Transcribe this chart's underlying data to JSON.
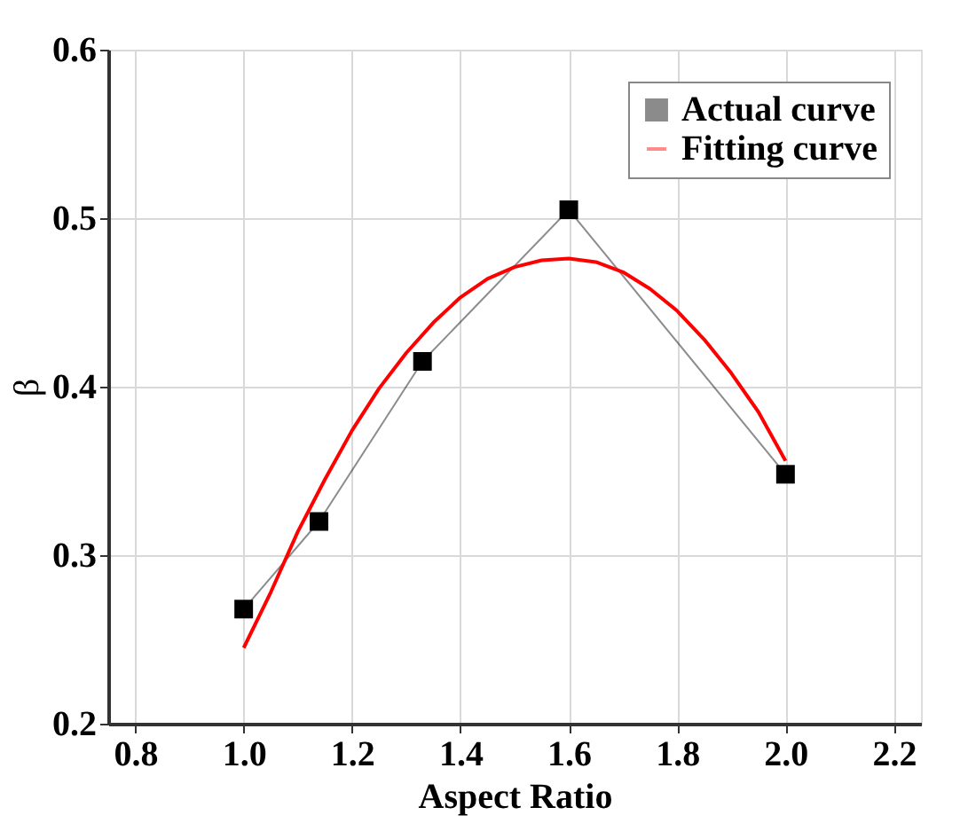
{
  "chart_data": {
    "type": "line",
    "xlabel": "Aspect Ratio",
    "ylabel": "β",
    "xlim": [
      0.75,
      2.25
    ],
    "xticks": [
      0.8,
      {
        "value": 1,
        "label": "1.0"
      },
      1.2,
      1.4,
      1.6,
      1.8,
      {
        "value": 2,
        "label": "2.0"
      },
      2.2
    ],
    "ylim": [
      0.2,
      0.6
    ],
    "yticks": [
      0.2,
      0.3,
      0.4,
      0.5,
      0.6
    ],
    "grid": true,
    "legend": "top right",
    "series": [
      {
        "name": "Actual curve",
        "color": "#000000",
        "marker": "square",
        "x": [
          1.0,
          1.139,
          1.33,
          1.6,
          2.0
        ],
        "values": [
          0.268,
          0.32,
          0.415,
          0.505,
          0.348
        ]
      },
      {
        "name": "Fitting curve",
        "color": "#ff0000",
        "marker": "none",
        "x": [
          1.0,
          1.05,
          1.1,
          1.15,
          1.2,
          1.25,
          1.3,
          1.35,
          1.4,
          1.45,
          1.5,
          1.55,
          1.6,
          1.65,
          1.7,
          1.75,
          1.8,
          1.85,
          1.9,
          1.95,
          2.0
        ],
        "values": [
          0.245,
          0.278,
          0.314,
          0.345,
          0.374,
          0.399,
          0.42,
          0.438,
          0.453,
          0.464,
          0.471,
          0.475,
          0.476,
          0.474,
          0.468,
          0.458,
          0.445,
          0.428,
          0.408,
          0.385,
          0.356
        ]
      }
    ]
  }
}
